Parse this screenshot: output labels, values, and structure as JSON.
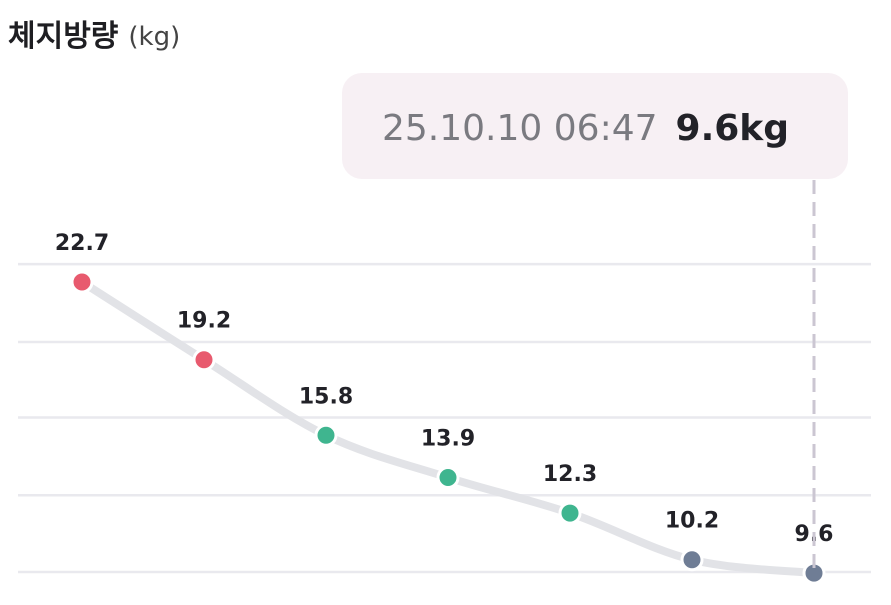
{
  "chart_data": {
    "type": "line",
    "title": "체지방량",
    "unit": "(kg)",
    "categories": [
      null,
      null,
      null,
      null,
      null,
      null,
      null
    ],
    "values": [
      22.7,
      19.2,
      15.8,
      13.9,
      12.3,
      10.2,
      9.6
    ],
    "point_colors": [
      "#e85a6e",
      "#e85a6e",
      "#3fb58f",
      "#3fb58f",
      "#3fb58f",
      "#6f7d95",
      "#6f7d95"
    ],
    "color": "#e2e3e7",
    "ylim": [
      9,
      27
    ],
    "yticks": [
      {
        "value": 9.65,
        "label": null
      },
      {
        "value": 13.1,
        "label": null
      },
      {
        "value": 16.6,
        "label": null
      },
      {
        "value": 20.0,
        "label": null
      },
      {
        "value": 23.5,
        "label": null
      }
    ],
    "grid": true,
    "tooltip": {
      "date": "25.10.10 06:47",
      "value_label": "9.6kg"
    }
  }
}
